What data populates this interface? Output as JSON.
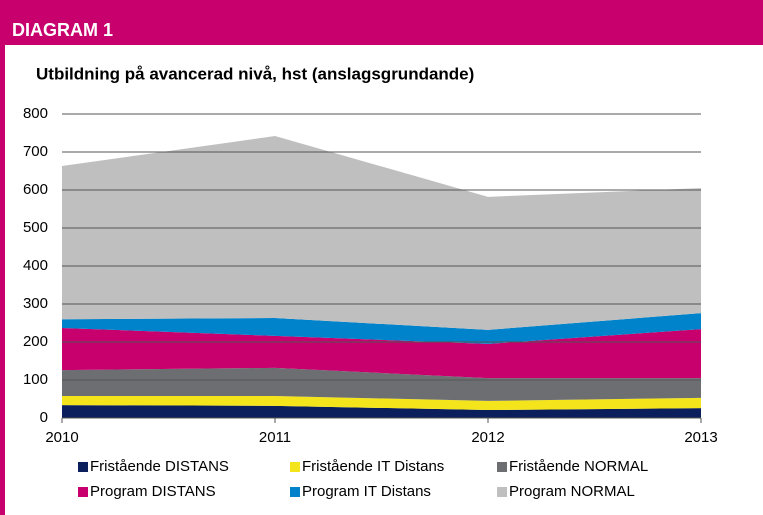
{
  "header": "DIAGRAM 1",
  "chart_data": {
    "type": "stacked-area",
    "title": "Utbildning på avancerad nivå, hst (anslagsgrundande)",
    "categories": [
      "2010",
      "2011",
      "2012",
      "2013"
    ],
    "series": [
      {
        "name": "Fristående DISTANS",
        "color": "#0b1f5c",
        "values": [
          34,
          32,
          21,
          26
        ]
      },
      {
        "name": "Fristående IT Distans",
        "color": "#f4e41c",
        "values": [
          24,
          26,
          24,
          27
        ]
      },
      {
        "name": "Fristående NORMAL",
        "color": "#6d6e71",
        "values": [
          68,
          74,
          60,
          52
        ]
      },
      {
        "name": "Program DISTANS",
        "color": "#c8006e",
        "values": [
          111,
          84,
          90,
          129
        ]
      },
      {
        "name": "Program IT Distans",
        "color": "#0083ca",
        "values": [
          23,
          47,
          37,
          42
        ]
      },
      {
        "name": "Program NORMAL",
        "color": "#bfbfbf",
        "values": [
          403,
          479,
          350,
          329
        ]
      }
    ],
    "ylim": [
      0,
      800
    ],
    "yticks": [
      0,
      100,
      200,
      300,
      400,
      500,
      600,
      700,
      800
    ],
    "grid": true
  }
}
